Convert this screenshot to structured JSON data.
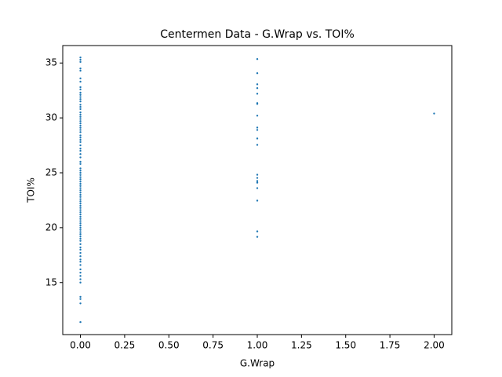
{
  "chart_data": {
    "type": "scatter",
    "title": "Centermen Data - G.Wrap vs. TOI%",
    "x_label": "G.Wrap",
    "y_label": "TOI%",
    "color": "#1f77b4",
    "grid": false,
    "xlim": [
      -0.1,
      2.1
    ],
    "xticks": [
      {
        "value": 0,
        "label": "0.00"
      },
      {
        "value": 0.25,
        "label": "0.25"
      },
      {
        "value": 0.5,
        "label": "0.50"
      },
      {
        "value": 0.75,
        "label": "0.75"
      },
      {
        "value": 1,
        "label": "1.00"
      },
      {
        "value": 1.25,
        "label": "1.25"
      },
      {
        "value": 1.5,
        "label": "1.50"
      },
      {
        "value": 1.75,
        "label": "1.75"
      },
      {
        "value": 2,
        "label": "2.00"
      }
    ],
    "ylim": [
      10.26,
      36.59
    ],
    "yticks": [
      15,
      20,
      25,
      30,
      35
    ],
    "x": [
      0,
      0,
      0,
      0,
      0,
      0,
      0,
      0,
      0,
      0,
      0,
      0,
      0,
      0,
      0,
      0,
      0,
      0,
      0,
      0,
      0,
      0,
      0,
      0,
      0,
      0,
      0,
      0,
      0,
      0,
      0,
      0,
      0,
      0,
      0,
      0,
      0,
      0,
      0,
      0,
      0,
      0,
      0,
      0,
      0,
      0,
      0,
      0,
      0,
      0,
      0,
      0,
      0,
      0,
      0,
      0,
      0,
      0,
      0,
      0,
      0,
      0,
      0,
      0,
      0,
      0,
      0,
      0,
      0,
      0,
      0,
      0,
      0,
      0,
      0,
      0,
      0,
      0,
      0,
      0,
      0,
      0,
      0,
      0,
      0,
      0,
      0,
      0,
      0,
      1,
      1,
      1,
      1,
      1,
      1,
      1,
      1,
      1,
      1,
      1,
      1,
      1,
      1,
      1,
      1,
      1,
      1,
      1,
      1,
      2
    ],
    "values": [
      35.5,
      35.3,
      35.1,
      34.5,
      34.3,
      33.6,
      33.3,
      32.8,
      32.6,
      32.3,
      32.1,
      31.9,
      31.7,
      31.5,
      31.2,
      31.0,
      30.8,
      30.5,
      30.3,
      30.1,
      29.9,
      29.7,
      29.5,
      29.3,
      29.1,
      28.9,
      28.7,
      28.4,
      28.2,
      28.0,
      27.8,
      27.5,
      27.2,
      27.0,
      26.7,
      26.4,
      26.0,
      25.8,
      25.4,
      25.2,
      25.0,
      24.8,
      24.6,
      24.4,
      24.2,
      24.0,
      23.8,
      23.6,
      23.4,
      23.2,
      23.0,
      22.8,
      22.6,
      22.4,
      22.2,
      22.0,
      21.8,
      21.6,
      21.4,
      21.2,
      21.0,
      20.8,
      20.6,
      20.4,
      20.2,
      20.0,
      19.8,
      19.6,
      19.4,
      19.2,
      19.0,
      18.8,
      18.5,
      18.2,
      18.0,
      17.7,
      17.4,
      17.1,
      16.9,
      16.6,
      16.2,
      15.9,
      15.6,
      15.3,
      15.0,
      13.7,
      13.5,
      13.1,
      11.4,
      35.36,
      34.07,
      33.06,
      32.71,
      32.2,
      31.34,
      31.27,
      30.2,
      29.12,
      28.9,
      28.12,
      27.54,
      24.82,
      24.53,
      24.25,
      24.1,
      23.6,
      22.46,
      19.66,
      19.16,
      30.4
    ]
  }
}
